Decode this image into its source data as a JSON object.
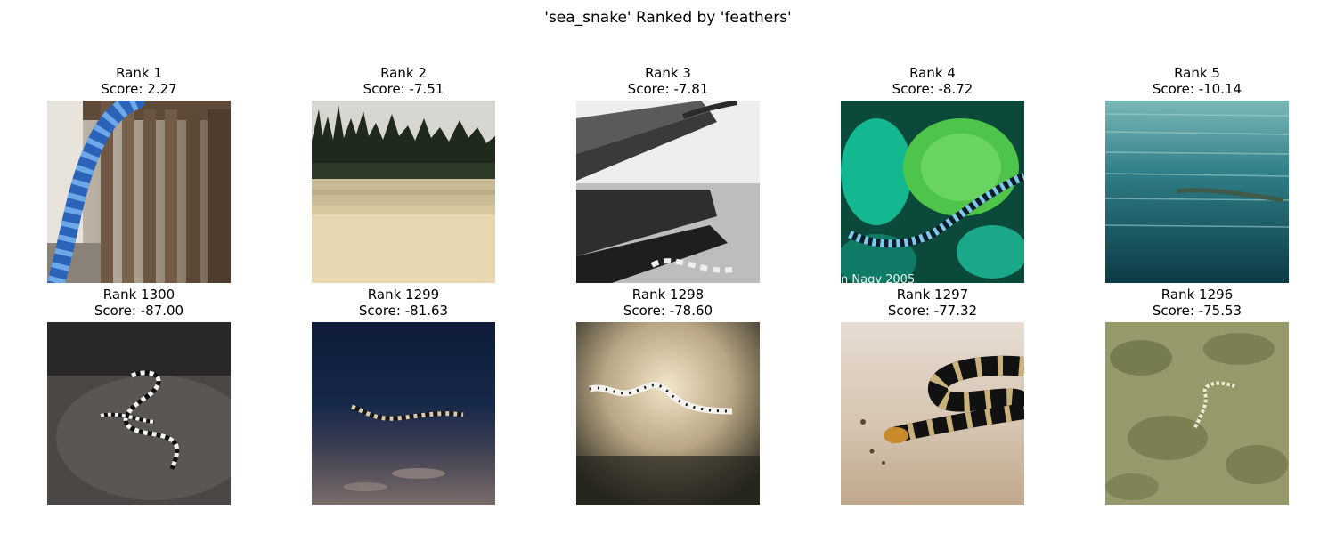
{
  "title": "'sea_snake' Ranked by 'feathers'",
  "panels": [
    {
      "rank": "Rank 1",
      "score": "Score: 2.27",
      "image": "snake-on-wooden-railing-photo"
    },
    {
      "rank": "Rank 2",
      "score": "Score: -7.51",
      "image": "sandy-beach-with-pine-trees-photo"
    },
    {
      "rank": "Rank 3",
      "score": "Score: -7.81",
      "image": "snake-beside-diving-fins-photo"
    },
    {
      "rank": "Rank 4",
      "score": "Score: -8.72",
      "image": "banded-snake-on-coral-photo",
      "watermark": "n Nagy 2005"
    },
    {
      "rank": "Rank 5",
      "score": "Score: -10.14",
      "image": "snake-in-open-water-photo"
    },
    {
      "rank": "Rank 1300",
      "score": "Score: -87.00",
      "image": "banded-snake-on-dark-rock-photo"
    },
    {
      "rank": "Rank 1299",
      "score": "Score: -81.63",
      "image": "snake-on-shore-at-night-photo"
    },
    {
      "rank": "Rank 1298",
      "score": "Score: -78.60",
      "image": "spotted-snake-under-torchlight-photo"
    },
    {
      "rank": "Rank 1297",
      "score": "Score: -77.32",
      "image": "black-and-yellow-snake-on-sand-photo"
    },
    {
      "rank": "Rank 1296",
      "score": "Score: -75.53",
      "image": "pale-snake-on-seabed-photo"
    }
  ]
}
